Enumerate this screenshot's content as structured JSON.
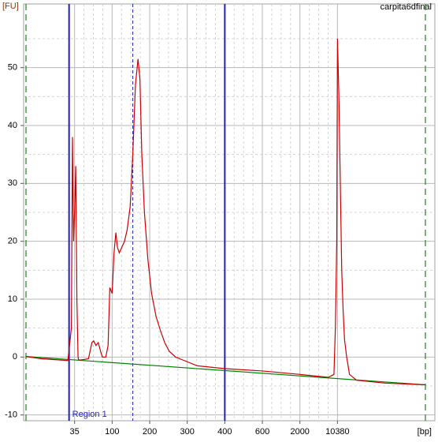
{
  "chart_data": {
    "type": "line",
    "title": "carpita6dfinal",
    "ylabel": "[FU]",
    "xlabel": "[bp]",
    "xlim": [
      9,
      30000
    ],
    "ylim": [
      -11,
      61
    ],
    "xticks": [
      35,
      100,
      200,
      300,
      400,
      600,
      2000,
      10380
    ],
    "yticks": [
      -10,
      0,
      10,
      20,
      30,
      40,
      50
    ],
    "grid": true,
    "series": [
      {
        "color": "#cc0000",
        "x": [
          9,
          14,
          29,
          32,
          33,
          34,
          35,
          37,
          39,
          41,
          42,
          46,
          59,
          65,
          68,
          72,
          76,
          80,
          83,
          89,
          93,
          96,
          100,
          105,
          110,
          114,
          119,
          126,
          133,
          140,
          148,
          155,
          162,
          169,
          174,
          179,
          186,
          195,
          205,
          217,
          229,
          240,
          252,
          269,
          288,
          326,
          400,
          600,
          2000,
          8330,
          9595,
          9911,
          10222,
          10380,
          10696,
          11012,
          11328,
          11644,
          11960,
          12434,
          13066,
          14647,
          20970,
          30000
        ],
        "values": [
          0.1,
          -0.3,
          -0.6,
          5,
          38,
          20,
          25,
          33,
          10,
          0,
          -0.5,
          -0.5,
          -0.3,
          2.5,
          2.8,
          2,
          2.5,
          1,
          0,
          0,
          2,
          12,
          11,
          18,
          21.5,
          19,
          18,
          19,
          20,
          22,
          26,
          35,
          47,
          51.5,
          48,
          35,
          25,
          17,
          11,
          7,
          4.5,
          2.5,
          1,
          0,
          -0.5,
          -1.5,
          -2,
          -2.4,
          -3,
          -3.5,
          -3,
          5,
          20,
          55,
          45,
          30,
          15,
          8,
          3,
          0,
          -3,
          -4,
          -4.5,
          -4.8
        ]
      },
      {
        "color": "#008000",
        "x": [
          9,
          30000
        ],
        "values": [
          0.1,
          -4.8
        ]
      }
    ],
    "region": {
      "label": "Region 1",
      "from": 30,
      "to": 400,
      "mid": 155,
      "color": "#2222bb"
    }
  }
}
